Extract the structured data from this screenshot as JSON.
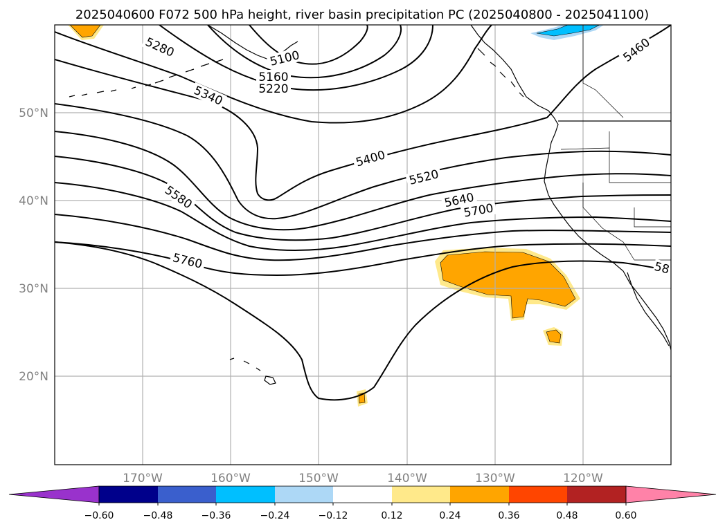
{
  "title": "2025040600 F072 500 hPa height, river basin precipitation PC (2025040800 - 2025041100)",
  "map": {
    "lon_labels": [
      "170°W",
      "160°W",
      "150°W",
      "140°W",
      "130°W",
      "120°W"
    ],
    "lat_labels": [
      "50°N",
      "40°N",
      "30°N",
      "20°N"
    ],
    "contour_labels": [
      "5100",
      "5160",
      "5220",
      "5280",
      "5340",
      "5400",
      "5460",
      "5520",
      "5580",
      "5640",
      "5700",
      "5760",
      "58"
    ],
    "line_color": "#000000",
    "grid_color": "#b0b0b0"
  },
  "colorbar": {
    "tick_labels": [
      "−0.60",
      "−0.48",
      "−0.36",
      "−0.24",
      "−0.12",
      "0.12",
      "0.24",
      "0.36",
      "0.48",
      "0.60"
    ],
    "colors": [
      "#9932cc",
      "#00008b",
      "#3a5fcd",
      "#00bfff",
      "#add8f6",
      "#ffffff",
      "#ffe98a",
      "#ffa500",
      "#ff4500",
      "#b22222",
      "#ff82a8"
    ]
  }
}
